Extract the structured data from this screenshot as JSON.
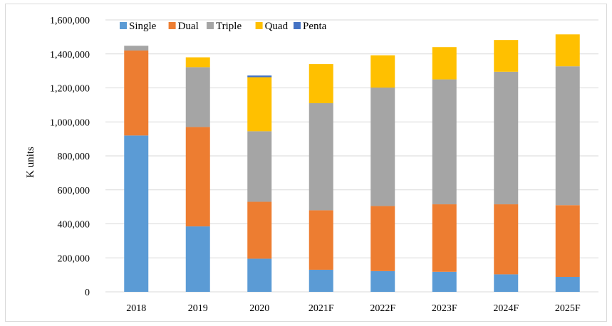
{
  "chart_data": {
    "type": "bar",
    "stacked": true,
    "title": "",
    "xlabel": "",
    "ylabel": "K units",
    "ylim": [
      0,
      1600000
    ],
    "yticks": [
      0,
      200000,
      400000,
      600000,
      800000,
      1000000,
      1200000,
      1400000,
      1600000
    ],
    "ytick_labels": [
      "0",
      "200,000",
      "400,000",
      "600,000",
      "800,000",
      "1,000,000",
      "1,200,000",
      "1,400,000",
      "1,600,000"
    ],
    "grid": true,
    "legend_position": "top-left",
    "categories": [
      "2018",
      "2019",
      "2020",
      "2021F",
      "2022F",
      "2023F",
      "2024F",
      "2025F"
    ],
    "series": [
      {
        "name": "Single",
        "color": "#5b9bd5",
        "values": [
          920000,
          385000,
          195000,
          130000,
          122000,
          118000,
          103000,
          88000
        ]
      },
      {
        "name": "Dual",
        "color": "#ed7d31",
        "values": [
          500000,
          585000,
          335000,
          350000,
          383000,
          397000,
          412000,
          422000
        ]
      },
      {
        "name": "Triple",
        "color": "#a5a5a5",
        "values": [
          28000,
          352000,
          415000,
          630000,
          697000,
          735000,
          780000,
          817000
        ]
      },
      {
        "name": "Quad",
        "color": "#ffc000",
        "values": [
          0,
          58000,
          318000,
          230000,
          190000,
          190000,
          187000,
          188000
        ]
      },
      {
        "name": "Penta",
        "color": "#4472c4",
        "values": [
          0,
          0,
          10000,
          0,
          0,
          0,
          0,
          0
        ]
      }
    ]
  }
}
